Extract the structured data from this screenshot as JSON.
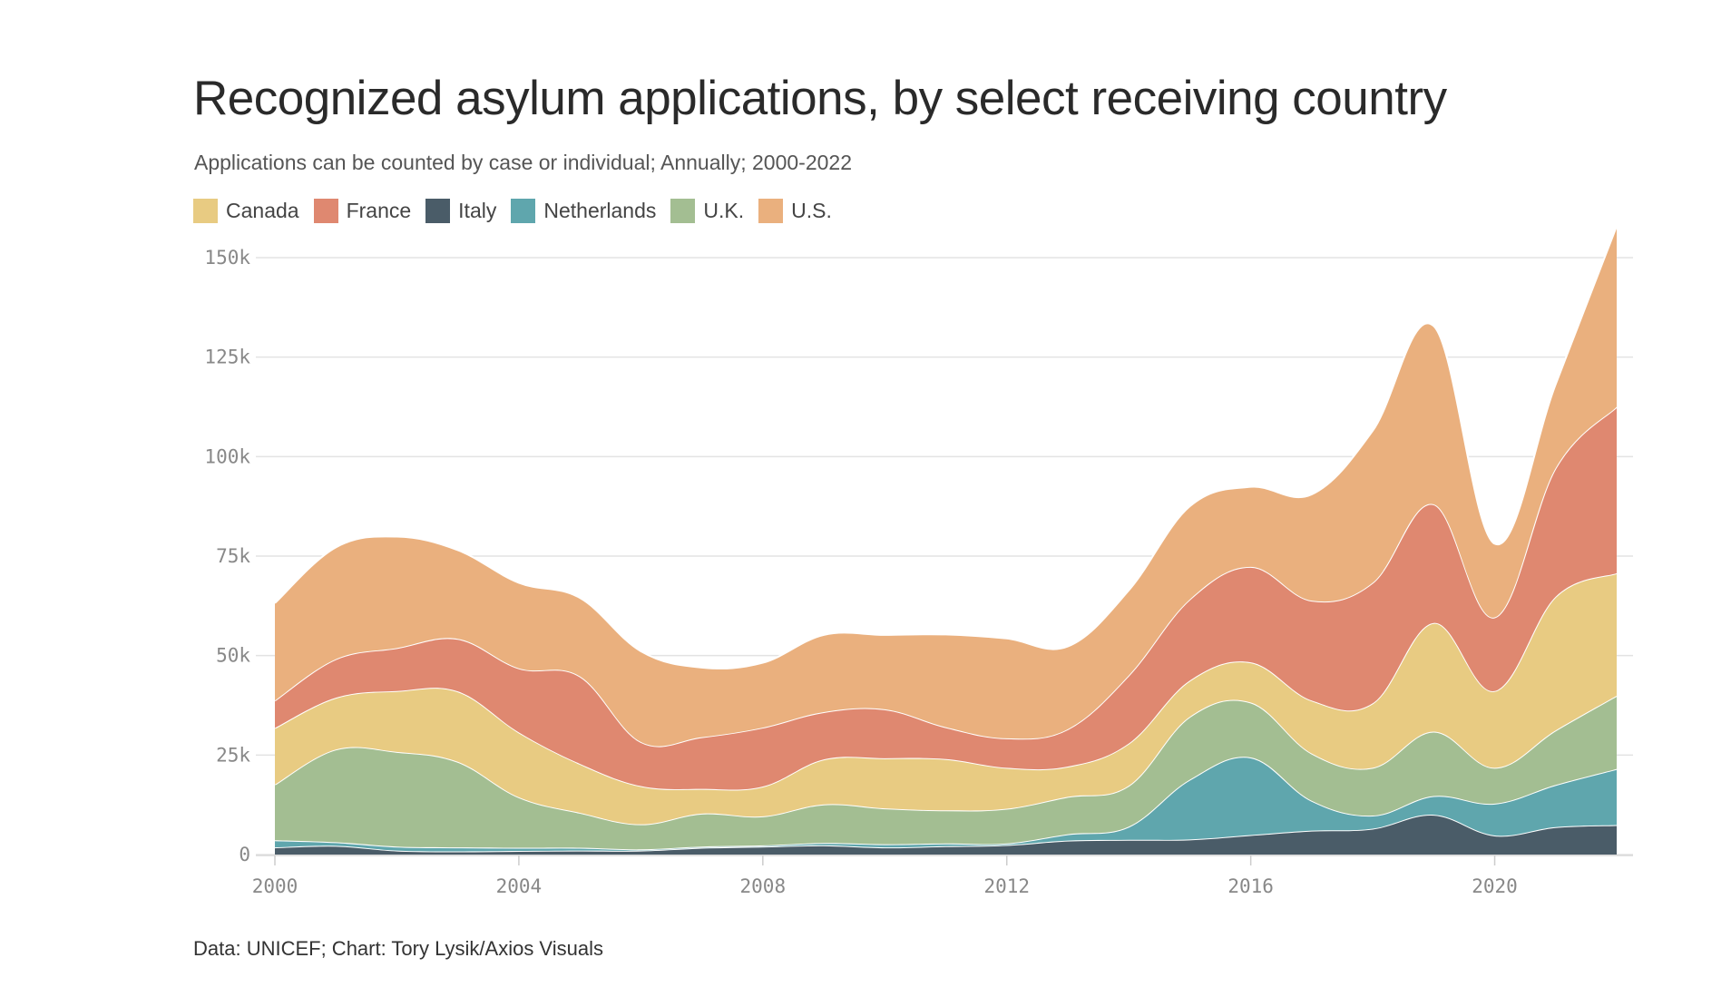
{
  "chart_data": {
    "type": "area",
    "stacked": true,
    "title": "Recognized asylum applications, by select receiving country",
    "subtitle": "Applications can be counted by case or individual; Annually; 2000-2022",
    "source": "Data: UNICEF; Chart: Tory Lysik/Axios Visuals",
    "x": [
      2000,
      2001,
      2002,
      2003,
      2004,
      2005,
      2006,
      2007,
      2008,
      2009,
      2010,
      2011,
      2012,
      2013,
      2014,
      2015,
      2016,
      2017,
      2018,
      2019,
      2020,
      2021,
      2022
    ],
    "xticks": [
      "2000",
      "2004",
      "2008",
      "2012",
      "2016",
      "2020"
    ],
    "yticks": [
      "0",
      "25k",
      "50k",
      "75k",
      "100k",
      "125k",
      "150k"
    ],
    "ylim": [
      0,
      150000
    ],
    "grid": true,
    "legend_position": "top-left",
    "series": [
      {
        "name": "Italy",
        "color": "#4a5c68",
        "values": [
          1800,
          2200,
          1000,
          800,
          900,
          1000,
          1000,
          1700,
          2000,
          2300,
          1800,
          2100,
          2400,
          3500,
          3700,
          3800,
          4900,
          6000,
          6500,
          10000,
          4800,
          6900,
          7400
        ]
      },
      {
        "name": "Netherlands",
        "color": "#5fa6ad",
        "values": [
          1800,
          900,
          1000,
          1000,
          800,
          700,
          300,
          300,
          300,
          600,
          800,
          700,
          400,
          1600,
          3300,
          15000,
          19500,
          7500,
          3300,
          4700,
          8000,
          10600,
          14100
        ]
      },
      {
        "name": "U.K.",
        "color": "#a3be92",
        "values": [
          14000,
          23300,
          23800,
          21500,
          12700,
          8800,
          6300,
          8300,
          7300,
          9700,
          9000,
          8300,
          8700,
          9400,
          10300,
          15800,
          13800,
          11900,
          12000,
          16200,
          9000,
          13700,
          18400
        ]
      },
      {
        "name": "Canada",
        "color": "#e8cb82",
        "values": [
          14200,
          13000,
          15300,
          17700,
          16300,
          12300,
          9600,
          6200,
          7500,
          11300,
          12600,
          12900,
          10300,
          7600,
          10600,
          9100,
          10100,
          13300,
          16200,
          27300,
          19300,
          33600,
          30800
        ]
      },
      {
        "name": "France",
        "color": "#df8870",
        "values": [
          6900,
          9700,
          10800,
          13200,
          16100,
          22000,
          11100,
          13000,
          14800,
          11900,
          12300,
          8000,
          7400,
          9400,
          17100,
          20400,
          24000,
          25100,
          30300,
          29800,
          18500,
          32300,
          41800
        ]
      },
      {
        "name": "U.S.",
        "color": "#eab07e",
        "values": [
          24500,
          28100,
          28000,
          22300,
          21500,
          19700,
          22800,
          17500,
          16300,
          19400,
          18700,
          23300,
          25100,
          20800,
          21400,
          23400,
          20100,
          26700,
          38200,
          44800,
          18500,
          21100,
          45400
        ]
      }
    ]
  }
}
